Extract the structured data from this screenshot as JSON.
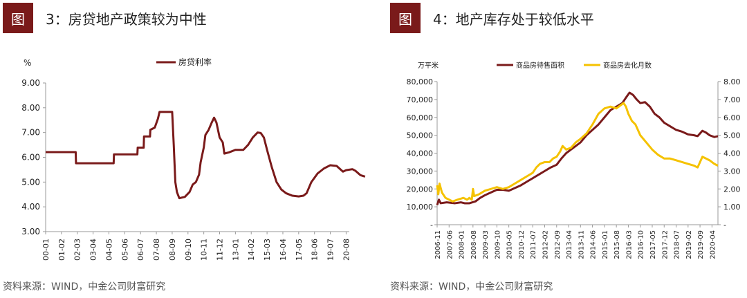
{
  "charts": [
    {
      "badge": "图",
      "title": "3：房贷地产政策较为中性",
      "source": "资料来源：WIND，中金公司财富研究"
    },
    {
      "badge": "图",
      "title": "4：地产库存处于较低水平",
      "source": "资料来源：WIND，中金公司财富研究"
    }
  ],
  "colors": {
    "badge": "#7a1a1a",
    "maroon": "#7a1a1a",
    "gold": "#f5c200",
    "axis": "#999999"
  },
  "chart_data": [
    {
      "type": "line",
      "y_unit": "%",
      "ylim": [
        3.0,
        9.0
      ],
      "y_ticks": [
        "3.00",
        "4.00",
        "5.00",
        "6.00",
        "7.00",
        "8.00",
        "9.00"
      ],
      "x_ticks": [
        "00-01",
        "01-02",
        "02-03",
        "03-04",
        "04-05",
        "05-06",
        "06-07",
        "07-08",
        "08-09",
        "09-10",
        "10-11",
        "11-12",
        "13-01",
        "14-02",
        "15-03",
        "16-04",
        "17-05",
        "18-06",
        "19-07",
        "20-08"
      ],
      "legend": "top-center",
      "series": [
        {
          "name": "房贷利率",
          "color": "#7a1a1a",
          "points": [
            [
              0,
              6.21
            ],
            [
              1.9,
              6.21
            ],
            [
              1.92,
              5.76
            ],
            [
              4.3,
              5.76
            ],
            [
              4.32,
              6.12
            ],
            [
              5.8,
              6.12
            ],
            [
              5.82,
              6.39
            ],
            [
              6.2,
              6.39
            ],
            [
              6.22,
              6.84
            ],
            [
              6.6,
              6.84
            ],
            [
              6.62,
              7.11
            ],
            [
              6.9,
              7.2
            ],
            [
              7.1,
              7.56
            ],
            [
              7.2,
              7.83
            ],
            [
              7.9,
              7.83
            ],
            [
              8.0,
              7.83
            ],
            [
              8.1,
              6.5
            ],
            [
              8.2,
              5.0
            ],
            [
              8.3,
              4.6
            ],
            [
              8.45,
              4.35
            ],
            [
              8.8,
              4.4
            ],
            [
              9.1,
              4.6
            ],
            [
              9.3,
              4.9
            ],
            [
              9.5,
              5.0
            ],
            [
              9.7,
              5.3
            ],
            [
              9.8,
              5.8
            ],
            [
              10.0,
              6.4
            ],
            [
              10.1,
              6.9
            ],
            [
              10.3,
              7.1
            ],
            [
              10.5,
              7.4
            ],
            [
              10.65,
              7.6
            ],
            [
              10.8,
              7.4
            ],
            [
              11.0,
              6.8
            ],
            [
              11.2,
              6.6
            ],
            [
              11.3,
              6.15
            ],
            [
              11.6,
              6.2
            ],
            [
              12.0,
              6.3
            ],
            [
              12.5,
              6.3
            ],
            [
              12.8,
              6.5
            ],
            [
              13.1,
              6.8
            ],
            [
              13.4,
              7.0
            ],
            [
              13.6,
              6.98
            ],
            [
              13.8,
              6.8
            ],
            [
              14.0,
              6.3
            ],
            [
              14.3,
              5.6
            ],
            [
              14.6,
              5.0
            ],
            [
              14.9,
              4.7
            ],
            [
              15.2,
              4.55
            ],
            [
              15.6,
              4.45
            ],
            [
              16.0,
              4.42
            ],
            [
              16.3,
              4.45
            ],
            [
              16.5,
              4.55
            ],
            [
              16.8,
              5.0
            ],
            [
              17.2,
              5.35
            ],
            [
              17.6,
              5.55
            ],
            [
              18.0,
              5.68
            ],
            [
              18.4,
              5.65
            ],
            [
              18.8,
              5.42
            ],
            [
              19.0,
              5.48
            ],
            [
              19.4,
              5.52
            ],
            [
              19.6,
              5.45
            ],
            [
              19.9,
              5.28
            ],
            [
              20.2,
              5.22
            ]
          ]
        }
      ]
    },
    {
      "type": "line",
      "y_unit": "万平米",
      "ylim": [
        0,
        80000
      ],
      "y2lim": [
        0,
        8.0
      ],
      "y_ticks": [
        "-",
        "10,000",
        "20,000",
        "30,000",
        "40,000",
        "50,000",
        "60,000",
        "70,000",
        "80,000"
      ],
      "y2_ticks": [
        "-",
        "1.00",
        "2.00",
        "3.00",
        "4.00",
        "5.00",
        "6.00",
        "7.00",
        "8.00"
      ],
      "x_ticks": [
        "2006-11",
        "2007-06",
        "2008-01",
        "2008-08",
        "2009-03",
        "2009-10",
        "2010-05",
        "2010-12",
        "2011-07",
        "2012-02",
        "2012-09",
        "2013-04",
        "2013-11",
        "2014-06",
        "2015-01",
        "2015-08",
        "2016-03",
        "2016-10",
        "2017-05",
        "2017-12",
        "2018-07",
        "2019-02",
        "2019-09",
        "2020-04"
      ],
      "legend": "top-center",
      "series": [
        {
          "name": "商品房待售面积",
          "color": "#7a1a1a",
          "axis": "left",
          "points": [
            [
              0,
              11000
            ],
            [
              0.15,
              14000
            ],
            [
              0.3,
              12000
            ],
            [
              0.8,
              12500
            ],
            [
              1.5,
              12000
            ],
            [
              2.0,
              12500
            ],
            [
              2.3,
              12000
            ],
            [
              2.7,
              12000
            ],
            [
              3.2,
              13000
            ],
            [
              3.6,
              15000
            ],
            [
              4.0,
              16500
            ],
            [
              4.5,
              18000
            ],
            [
              5.0,
              19500
            ],
            [
              5.5,
              19500
            ],
            [
              6.0,
              19000
            ],
            [
              6.5,
              20500
            ],
            [
              7.0,
              22000
            ],
            [
              7.5,
              24000
            ],
            [
              8.0,
              26000
            ],
            [
              8.5,
              28000
            ],
            [
              9.0,
              30000
            ],
            [
              9.5,
              32000
            ],
            [
              10.0,
              33500
            ],
            [
              10.4,
              37000
            ],
            [
              10.8,
              40000
            ],
            [
              11.2,
              42000
            ],
            [
              11.6,
              44000
            ],
            [
              12.0,
              46000
            ],
            [
              12.5,
              50000
            ],
            [
              13.0,
              53000
            ],
            [
              13.5,
              56000
            ],
            [
              14.0,
              60000
            ],
            [
              14.5,
              64000
            ],
            [
              15.0,
              66000
            ],
            [
              15.5,
              68000
            ],
            [
              15.8,
              71000
            ],
            [
              16.1,
              73800
            ],
            [
              16.4,
              72500
            ],
            [
              16.7,
              70000
            ],
            [
              17.0,
              68000
            ],
            [
              17.4,
              68500
            ],
            [
              17.8,
              66000
            ],
            [
              18.2,
              62000
            ],
            [
              18.6,
              60000
            ],
            [
              19.0,
              57000
            ],
            [
              19.5,
              55000
            ],
            [
              20.0,
              53000
            ],
            [
              20.5,
              52000
            ],
            [
              21.0,
              50500
            ],
            [
              21.5,
              50000
            ],
            [
              21.8,
              49500
            ],
            [
              22.0,
              51000
            ],
            [
              22.2,
              52500
            ],
            [
              22.5,
              51500
            ],
            [
              22.8,
              50000
            ],
            [
              23.2,
              49000
            ],
            [
              23.5,
              49500
            ]
          ]
        },
        {
          "name": "商品房去化月数",
          "color": "#f5c200",
          "axis": "right",
          "points": [
            [
              0,
              2.2
            ],
            [
              0.1,
              1.7
            ],
            [
              0.2,
              2.3
            ],
            [
              0.4,
              1.8
            ],
            [
              0.7,
              1.5
            ],
            [
              1.0,
              1.4
            ],
            [
              1.3,
              1.3
            ],
            [
              1.7,
              1.4
            ],
            [
              2.2,
              1.5
            ],
            [
              2.5,
              1.4
            ],
            [
              2.7,
              1.5
            ],
            [
              2.9,
              1.4
            ],
            [
              3.0,
              2.0
            ],
            [
              3.1,
              1.6
            ],
            [
              3.5,
              1.7
            ],
            [
              4.0,
              1.9
            ],
            [
              4.5,
              2.0
            ],
            [
              5.0,
              2.1
            ],
            [
              5.5,
              2.0
            ],
            [
              6.0,
              2.1
            ],
            [
              6.5,
              2.3
            ],
            [
              7.0,
              2.5
            ],
            [
              7.5,
              2.7
            ],
            [
              8.0,
              2.9
            ],
            [
              8.3,
              3.2
            ],
            [
              8.6,
              3.4
            ],
            [
              9.0,
              3.5
            ],
            [
              9.4,
              3.5
            ],
            [
              9.7,
              3.7
            ],
            [
              10.0,
              3.8
            ],
            [
              10.3,
              4.1
            ],
            [
              10.5,
              4.4
            ],
            [
              10.8,
              4.2
            ],
            [
              11.2,
              4.3
            ],
            [
              11.6,
              4.6
            ],
            [
              12.0,
              4.8
            ],
            [
              12.5,
              5.1
            ],
            [
              13.0,
              5.6
            ],
            [
              13.5,
              6.2
            ],
            [
              14.0,
              6.5
            ],
            [
              14.5,
              6.6
            ],
            [
              15.0,
              6.5
            ],
            [
              15.4,
              6.7
            ],
            [
              15.6,
              6.8
            ],
            [
              15.8,
              6.6
            ],
            [
              16.0,
              6.2
            ],
            [
              16.3,
              5.8
            ],
            [
              16.6,
              5.6
            ],
            [
              17.0,
              5.0
            ],
            [
              17.5,
              4.6
            ],
            [
              18.0,
              4.2
            ],
            [
              18.5,
              3.9
            ],
            [
              19.0,
              3.7
            ],
            [
              19.5,
              3.7
            ],
            [
              20.0,
              3.6
            ],
            [
              20.5,
              3.5
            ],
            [
              21.0,
              3.4
            ],
            [
              21.5,
              3.3
            ],
            [
              21.8,
              3.2
            ],
            [
              22.0,
              3.5
            ],
            [
              22.2,
              3.8
            ],
            [
              22.5,
              3.7
            ],
            [
              22.8,
              3.6
            ],
            [
              23.2,
              3.4
            ],
            [
              23.5,
              3.3
            ]
          ]
        }
      ]
    }
  ]
}
